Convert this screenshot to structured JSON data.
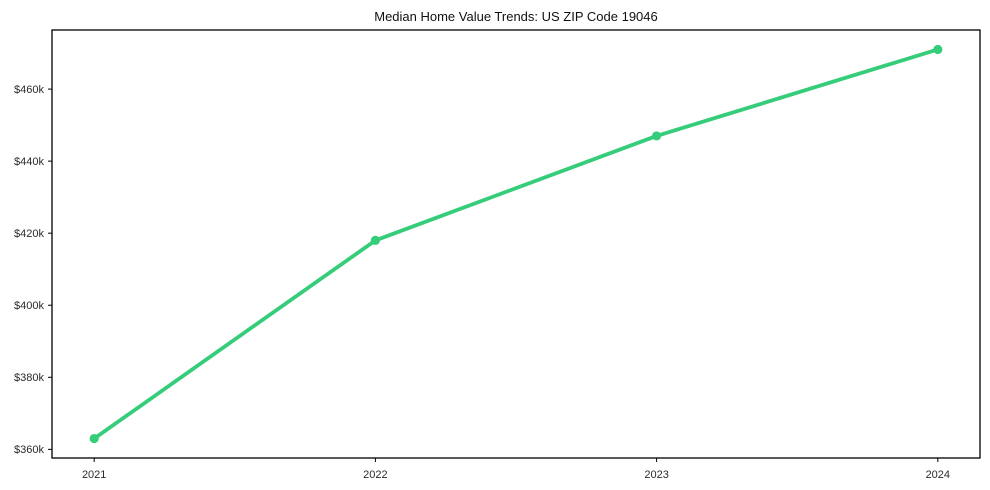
{
  "figure": {
    "title": "Median Home Value Trends: US ZIP Code 19046"
  },
  "chart_data": {
    "type": "line",
    "title": "Median Home Value Trends: US ZIP Code 19046",
    "x": [
      2021,
      2022,
      2023,
      2024
    ],
    "xtick_labels": [
      "2021",
      "2022",
      "2023",
      "2024"
    ],
    "series": [
      {
        "name": "Median Home Value",
        "values": [
          363000,
          418000,
          447000,
          471000
        ]
      }
    ],
    "yticks": [
      360000,
      380000,
      400000,
      420000,
      440000,
      460000
    ],
    "ytick_labels": [
      "$360k",
      "$380k",
      "$400k",
      "$420k",
      "$440k",
      "$460k"
    ],
    "xlim": [
      2020.85,
      2024.15
    ],
    "ylim": [
      357600,
      476400
    ],
    "xlabel": "",
    "ylabel": "",
    "grid": false,
    "legend_position": "none",
    "line_color": "#36cd7a",
    "marker": "circle",
    "background_color": "#ffffff",
    "spine_color": "#000000",
    "tick_label_color": "#2b2b2b",
    "title_color": "#111111"
  }
}
